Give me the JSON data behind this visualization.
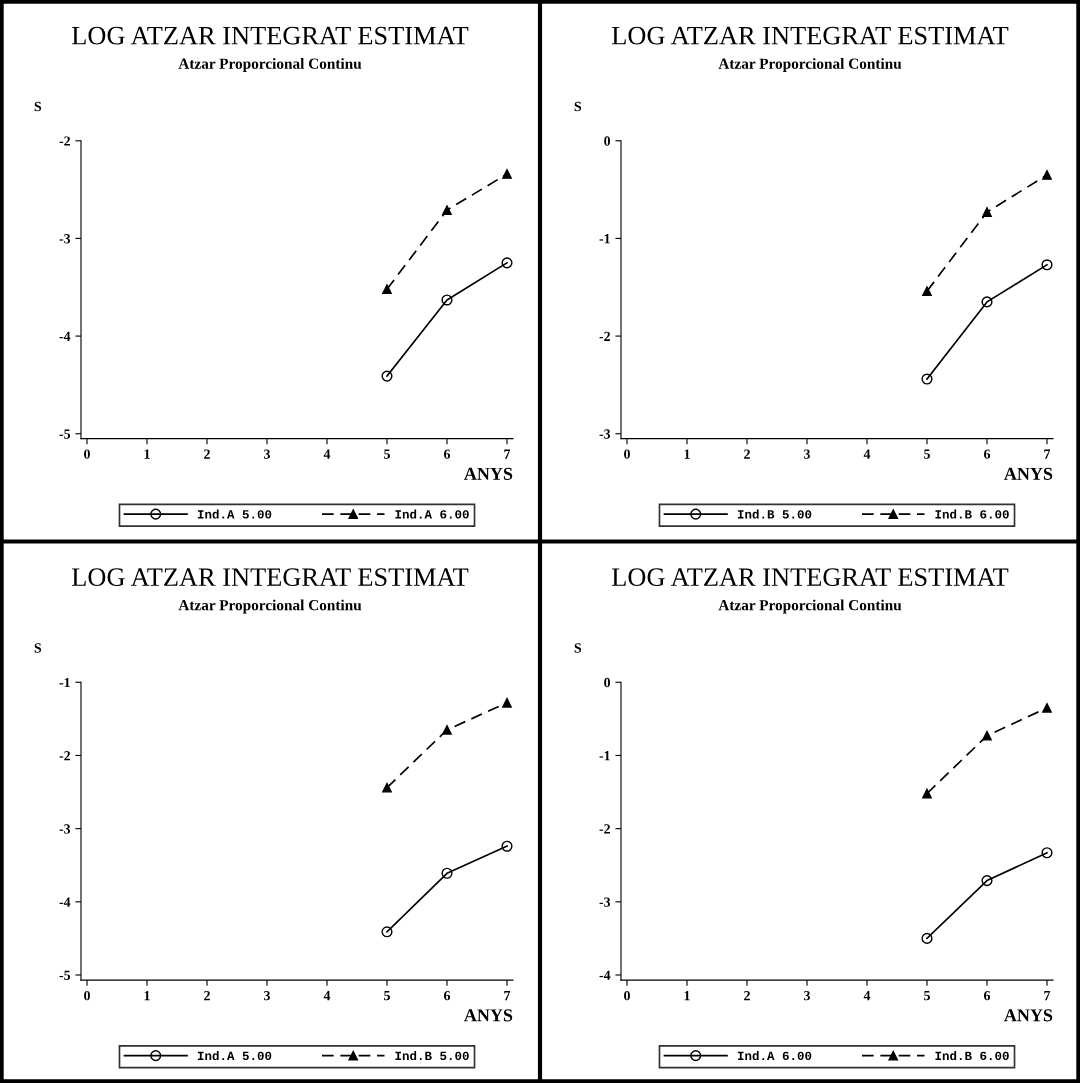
{
  "chart_data": [
    {
      "type": "line",
      "title": "LOG ATZAR INTEGRAT ESTIMAT",
      "subtitle": "Atzar Proporcional Continu",
      "xlabel": "ANYS",
      "ylabel": "S",
      "x": [
        5,
        6,
        7
      ],
      "xlim": [
        -0.1,
        7.1
      ],
      "xticks": [
        0,
        1,
        2,
        3,
        4,
        5,
        6,
        7
      ],
      "ylim": [
        -5.05,
        -2
      ],
      "yticks": [
        -5,
        -4,
        -3,
        -2
      ],
      "legend": "bottom",
      "grid": false,
      "series": [
        {
          "name": "Ind.A 5.00",
          "color": "#000000",
          "marker": "circle",
          "line_style": "solid",
          "values": [
            -4.41,
            -3.63,
            -3.25
          ]
        },
        {
          "name": "Ind.A 6.00",
          "color": "#000000",
          "marker": "triangle",
          "line_style": "dashed",
          "values": [
            -3.52,
            -2.71,
            -2.34
          ]
        }
      ]
    },
    {
      "type": "line",
      "title": "LOG ATZAR INTEGRAT ESTIMAT",
      "subtitle": "Atzar Proporcional Continu",
      "xlabel": "ANYS",
      "ylabel": "S",
      "x": [
        5,
        6,
        7
      ],
      "xlim": [
        -0.1,
        7.1
      ],
      "xticks": [
        0,
        1,
        2,
        3,
        4,
        5,
        6,
        7
      ],
      "ylim": [
        -3.05,
        0
      ],
      "yticks": [
        -3,
        -2,
        -1,
        0
      ],
      "legend": "bottom",
      "grid": false,
      "series": [
        {
          "name": "Ind.B 5.00",
          "color": "#000000",
          "marker": "circle",
          "line_style": "solid",
          "values": [
            -2.44,
            -1.65,
            -1.27
          ]
        },
        {
          "name": "Ind.B 6.00",
          "color": "#000000",
          "marker": "triangle",
          "line_style": "dashed",
          "values": [
            -1.54,
            -0.73,
            -0.35
          ]
        }
      ]
    },
    {
      "type": "line",
      "title": "LOG ATZAR INTEGRAT ESTIMAT",
      "subtitle": "Atzar Proporcional Continu",
      "xlabel": "ANYS",
      "ylabel": "S",
      "x": [
        5,
        6,
        7
      ],
      "xlim": [
        -0.1,
        7.1
      ],
      "xticks": [
        0,
        1,
        2,
        3,
        4,
        5,
        6,
        7
      ],
      "ylim": [
        -5.07,
        -1
      ],
      "yticks": [
        -5,
        -4,
        -3,
        -2,
        -1
      ],
      "legend": "bottom",
      "grid": false,
      "series": [
        {
          "name": "Ind.A 5.00",
          "color": "#000000",
          "marker": "circle",
          "line_style": "solid",
          "values": [
            -4.41,
            -3.61,
            -3.24
          ]
        },
        {
          "name": "Ind.B 5.00",
          "color": "#000000",
          "marker": "triangle",
          "line_style": "dashed",
          "values": [
            -2.44,
            -1.65,
            -1.28
          ]
        }
      ]
    },
    {
      "type": "line",
      "title": "LOG ATZAR INTEGRAT ESTIMAT",
      "subtitle": "Atzar Proporcional Continu",
      "xlabel": "ANYS",
      "ylabel": "S",
      "x": [
        5,
        6,
        7
      ],
      "xlim": [
        -0.1,
        7.1
      ],
      "xticks": [
        0,
        1,
        2,
        3,
        4,
        5,
        6,
        7
      ],
      "ylim": [
        -4.07,
        0
      ],
      "yticks": [
        -4,
        -3,
        -2,
        -1,
        0
      ],
      "legend": "bottom",
      "grid": false,
      "series": [
        {
          "name": "Ind.A 6.00",
          "color": "#000000",
          "marker": "circle",
          "line_style": "solid",
          "values": [
            -3.5,
            -2.71,
            -2.33
          ]
        },
        {
          "name": "Ind.B 6.00",
          "color": "#000000",
          "marker": "triangle",
          "line_style": "dashed",
          "values": [
            -1.52,
            -0.73,
            -0.35
          ]
        }
      ]
    }
  ]
}
